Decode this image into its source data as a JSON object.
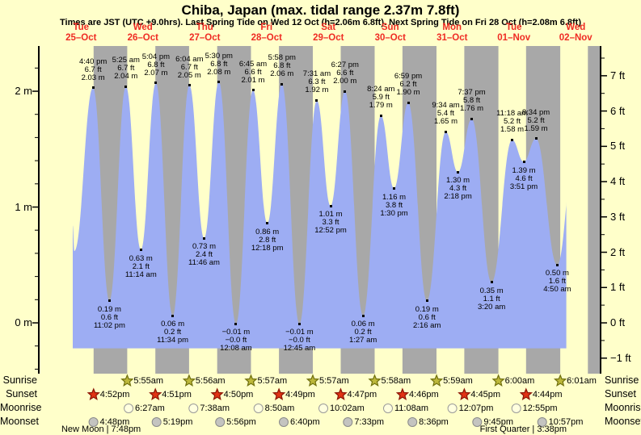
{
  "title": "Chiba, Japan (max. tidal range 2.37m 7.8ft)",
  "subtitle": "Times are JST (UTC +9.0hrs). Last Spring Tide on Wed 12 Oct (h=2.06m 6.8ft). Next Spring Tide on Fri 28 Oct (h=2.08m 6.8ft)",
  "colors": {
    "background": "#ffffca",
    "night_band": "#a8a8a8",
    "tide_fill": "#9dadf3",
    "date_red": "#ef2b23",
    "axis": "#000000",
    "sunrise_star": "#bdb83a",
    "sunrise_star_border": "#70700f",
    "sunset_star": "#e13314",
    "sunset_star_border": "#8c1506",
    "moonrise_fill": "#ffffdf",
    "moonrise_border": "#9a9a9a",
    "moonset_fill": "#c4c4c0",
    "moonset_border": "#8a8a8a"
  },
  "chart_data": {
    "type": "area",
    "series_name": "tide height",
    "units": [
      "m",
      "ft"
    ],
    "days": [
      {
        "name": "Tue",
        "date": "25–Oct"
      },
      {
        "name": "Wed",
        "date": "26–Oct"
      },
      {
        "name": "Thu",
        "date": "27–Oct"
      },
      {
        "name": "Fri",
        "date": "28–Oct"
      },
      {
        "name": "Sat",
        "date": "29–Oct"
      },
      {
        "name": "Sun",
        "date": "30–Oct"
      },
      {
        "name": "Mon",
        "date": "31–Oct"
      },
      {
        "name": "Tue",
        "date": "01–Nov"
      },
      {
        "name": "Wed",
        "date": "02–Nov"
      }
    ],
    "axes": {
      "left_ticks": [
        {
          "label": "2 m",
          "m": 2
        },
        {
          "label": "1 m",
          "m": 1
        },
        {
          "label": "0 m",
          "m": 0
        }
      ],
      "right_ticks": [
        {
          "label": "7 ft",
          "ft": 7
        },
        {
          "label": "6 ft",
          "ft": 6
        },
        {
          "label": "5 ft",
          "ft": 5
        },
        {
          "label": "4 ft",
          "ft": 4
        },
        {
          "label": "3 ft",
          "ft": 3
        },
        {
          "label": "2 ft",
          "ft": 2
        },
        {
          "label": "1 ft",
          "ft": 1
        },
        {
          "label": "0 ft",
          "ft": 0
        },
        {
          "label": "−1 ft",
          "ft": -1
        }
      ]
    },
    "extremes": [
      {
        "day": 0,
        "time": "4:40 pm",
        "type": "high",
        "m": 2.03,
        "labels": [
          "4:40 pm",
          "6.7 ft",
          "2.03 m"
        ]
      },
      {
        "day": 0,
        "time": "11:02 pm",
        "type": "low",
        "m": 0.19,
        "labels": [
          "0.19 m",
          "0.6 ft",
          "11:02 pm"
        ]
      },
      {
        "day": 1,
        "time": "5:25 am",
        "type": "high",
        "m": 2.04,
        "labels": [
          "5:25 am",
          "6.7 ft",
          "2.04 m"
        ]
      },
      {
        "day": 1,
        "time": "11:14 am",
        "type": "low",
        "m": 0.63,
        "labels": [
          "0.63 m",
          "2.1 ft",
          "11:14 am"
        ]
      },
      {
        "day": 1,
        "time": "5:04 pm",
        "type": "high",
        "m": 2.07,
        "labels": [
          "5:04 pm",
          "6.8 ft",
          "2.07 m"
        ]
      },
      {
        "day": 1,
        "time": "11:34 pm",
        "type": "low",
        "m": 0.06,
        "labels": [
          "0.06 m",
          "0.2 ft",
          "11:34 pm"
        ]
      },
      {
        "day": 2,
        "time": "6:04 am",
        "type": "high",
        "m": 2.05,
        "labels": [
          "6:04 am",
          "6.7 ft",
          "2.05 m"
        ]
      },
      {
        "day": 2,
        "time": "11:46 am",
        "type": "low",
        "m": 0.73,
        "labels": [
          "0.73 m",
          "2.4 ft",
          "11:46 am"
        ]
      },
      {
        "day": 2,
        "time": "5:30 pm",
        "type": "high",
        "m": 2.08,
        "labels": [
          "5:30 pm",
          "6.8 ft",
          "2.08 m"
        ]
      },
      {
        "day": 3,
        "time": "12:08 am",
        "type": "low",
        "m": -0.01,
        "labels": [
          "−0.01 m",
          "−0.0 ft",
          "12:08 am"
        ]
      },
      {
        "day": 3,
        "time": "6:45 am",
        "type": "high",
        "m": 2.01,
        "labels": [
          "6:45 am",
          "6.6 ft",
          "2.01 m"
        ]
      },
      {
        "day": 3,
        "time": "12:18 pm",
        "type": "low",
        "m": 0.86,
        "labels": [
          "0.86 m",
          "2.8 ft",
          "12:18 pm"
        ]
      },
      {
        "day": 3,
        "time": "5:58 pm",
        "type": "high",
        "m": 2.06,
        "labels": [
          "5:58 pm",
          "6.8 ft",
          "2.06 m"
        ]
      },
      {
        "day": 4,
        "time": "12:45 am",
        "type": "low",
        "m": -0.01,
        "labels": [
          "−0.01 m",
          "−0.0 ft",
          "12:45 am"
        ]
      },
      {
        "day": 4,
        "time": "7:31 am",
        "type": "high",
        "m": 1.92,
        "labels": [
          "7:31 am",
          "6.3 ft",
          "1.92 m"
        ]
      },
      {
        "day": 4,
        "time": "12:52 pm",
        "type": "low",
        "m": 1.01,
        "labels": [
          "1.01 m",
          "3.3 ft",
          "12:52 pm"
        ]
      },
      {
        "day": 4,
        "time": "6:27 pm",
        "type": "high",
        "m": 2.0,
        "labels": [
          "6:27 pm",
          "6.6 ft",
          "2.00 m"
        ]
      },
      {
        "day": 5,
        "time": "1:27 am",
        "type": "low",
        "m": 0.06,
        "labels": [
          "0.06 m",
          "0.2 ft",
          "1:27 am"
        ]
      },
      {
        "day": 5,
        "time": "8:24 am",
        "type": "high",
        "m": 1.79,
        "labels": [
          "8:24 am",
          "5.9 ft",
          "1.79 m"
        ]
      },
      {
        "day": 5,
        "time": "1:30 pm",
        "type": "low",
        "m": 1.16,
        "labels": [
          "1.16 m",
          "3.8 ft",
          "1:30 pm"
        ]
      },
      {
        "day": 5,
        "time": "6:59 pm",
        "type": "high",
        "m": 1.9,
        "labels": [
          "6:59 pm",
          "6.2 ft",
          "1.90 m"
        ]
      },
      {
        "day": 6,
        "time": "2:16 am",
        "type": "low",
        "m": 0.19,
        "labels": [
          "0.19 m",
          "0.6 ft",
          "2:16 am"
        ]
      },
      {
        "day": 6,
        "time": "9:34 am",
        "type": "high",
        "m": 1.65,
        "labels": [
          "9:34 am",
          "5.4 ft",
          "1.65 m"
        ]
      },
      {
        "day": 6,
        "time": "2:18 pm",
        "type": "low",
        "m": 1.3,
        "labels": [
          "1.30 m",
          "4.3 ft",
          "2:18 pm"
        ]
      },
      {
        "day": 6,
        "time": "7:37 pm",
        "type": "high",
        "m": 1.76,
        "labels": [
          "7:37 pm",
          "5.8 ft",
          "1.76 m"
        ]
      },
      {
        "day": 7,
        "time": "3:20 am",
        "type": "low",
        "m": 0.35,
        "labels": [
          "0.35 m",
          "1.1 ft",
          "3:20 am"
        ]
      },
      {
        "day": 7,
        "time": "11:18 am",
        "type": "high",
        "m": 1.58,
        "labels": [
          "11:18 am",
          "5.2 ft",
          "1.58 m"
        ]
      },
      {
        "day": 7,
        "time": "3:51 pm",
        "type": "low",
        "m": 1.39,
        "labels": [
          "1.39 m",
          "4.6 ft",
          "3:51 pm"
        ]
      },
      {
        "day": 7,
        "time": "8:34 pm",
        "type": "high",
        "m": 1.59,
        "labels": [
          "8:34 pm",
          "5.2 ft",
          "1.59 m"
        ]
      },
      {
        "day": 8,
        "time": "4:50 am",
        "type": "low",
        "m": 0.5,
        "labels": [
          "0.50 m",
          "1.6 ft",
          "4:50 am"
        ]
      }
    ],
    "curve_start": {
      "day": 0,
      "time": "8:47 am",
      "m": 0.84
    },
    "curve_start_dip": {
      "day": 0,
      "time": "9:25 am",
      "m": 0.62
    },
    "curve_end": {
      "day": 8,
      "time": "8:20 am"
    },
    "offscreen_next_high": {
      "day": 8,
      "time": "11:30 am",
      "m": 1.45
    }
  },
  "almanac": {
    "rows": [
      {
        "label": "Sunrise",
        "icon": "sunrise-star-icon",
        "events": [
          {
            "day": 1,
            "time": "5:55am"
          },
          {
            "day": 2,
            "time": "5:56am"
          },
          {
            "day": 3,
            "time": "5:57am"
          },
          {
            "day": 4,
            "time": "5:57am"
          },
          {
            "day": 5,
            "time": "5:58am"
          },
          {
            "day": 6,
            "time": "5:59am"
          },
          {
            "day": 7,
            "time": "6:00am"
          },
          {
            "day": 8,
            "time": "6:01am"
          }
        ]
      },
      {
        "label": "Sunset",
        "icon": "sunset-star-icon",
        "events": [
          {
            "day": 0,
            "time": "4:52pm"
          },
          {
            "day": 1,
            "time": "4:51pm"
          },
          {
            "day": 2,
            "time": "4:50pm"
          },
          {
            "day": 3,
            "time": "4:49pm"
          },
          {
            "day": 4,
            "time": "4:47pm"
          },
          {
            "day": 5,
            "time": "4:46pm"
          },
          {
            "day": 6,
            "time": "4:45pm"
          },
          {
            "day": 7,
            "time": "4:44pm"
          }
        ]
      },
      {
        "label": "Moonrise",
        "icon": "moonrise-circle-icon",
        "events": [
          {
            "day": 1,
            "time": "6:27am"
          },
          {
            "day": 2,
            "time": "7:38am"
          },
          {
            "day": 3,
            "time": "8:50am"
          },
          {
            "day": 4,
            "time": "10:02am"
          },
          {
            "day": 5,
            "time": "11:08am"
          },
          {
            "day": 6,
            "time": "12:07pm"
          },
          {
            "day": 7,
            "time": "12:55pm"
          }
        ]
      },
      {
        "label": "Moonset",
        "icon": "moonset-circle-icon",
        "events": [
          {
            "day": 0,
            "time": "4:48pm"
          },
          {
            "day": 1,
            "time": "5:19pm"
          },
          {
            "day": 2,
            "time": "5:56pm"
          },
          {
            "day": 3,
            "time": "6:40pm"
          },
          {
            "day": 4,
            "time": "7:33pm"
          },
          {
            "day": 5,
            "time": "8:36pm"
          },
          {
            "day": 6,
            "time": "9:45pm"
          },
          {
            "day": 7,
            "time": "10:57pm"
          }
        ]
      }
    ],
    "phases": [
      {
        "name": "New Moon",
        "time": "7:48pm",
        "day": 0
      },
      {
        "name": "First Quarter",
        "time": "3:38pm",
        "day": 7
      }
    ],
    "phase_separator": " | "
  }
}
